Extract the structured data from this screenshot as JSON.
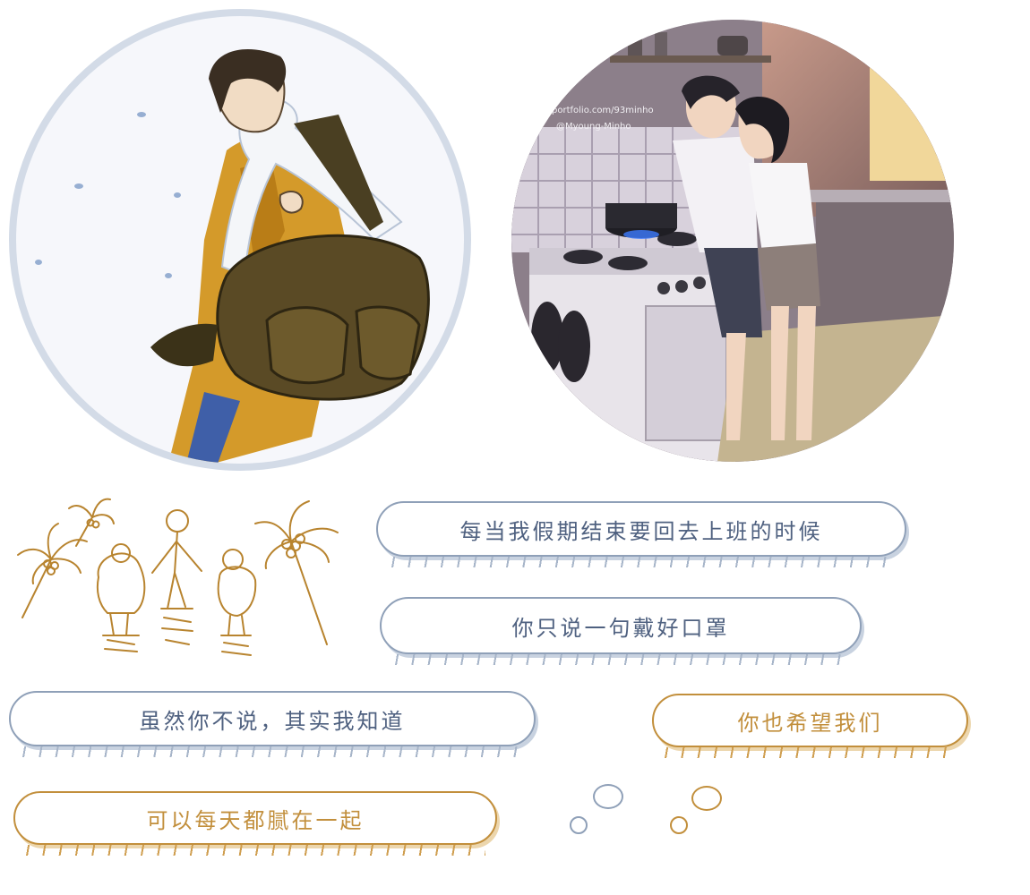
{
  "illustrations": {
    "left": "man-walking-in-snow-illustration",
    "right": "couple-cooking-in-kitchen-illustration",
    "right_watermark_1": "portfolio.com/93minho",
    "right_watermark_2": "@Myoung-Minho",
    "doodle": "family-playground-doodle"
  },
  "bubbles": [
    {
      "text": "每当我假期结束要回去上班的时候",
      "color": "#4f6180"
    },
    {
      "text": "你只说一句戴好口罩",
      "color": "#4f6180"
    },
    {
      "text": "虽然你不说，其实我知道",
      "color": "#4f6180"
    },
    {
      "text": "你也希望我们",
      "color": "#c28f3c"
    },
    {
      "text": "可以每天都腻在一起",
      "color": "#c28f3c"
    }
  ],
  "colors": {
    "blue_outline": "#8fa0b8",
    "gold_outline": "#c28f3c",
    "circle_left_ring": "#d3dbe7"
  }
}
